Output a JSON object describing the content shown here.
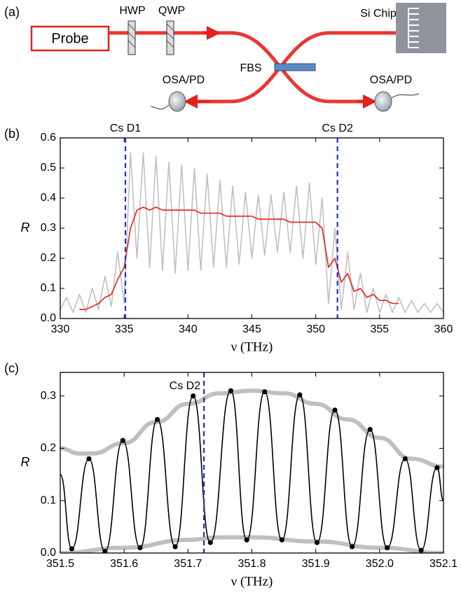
{
  "diagram": {
    "panel_label": "(a)",
    "probe": "Probe",
    "hwp": "HWP",
    "qwp": "QWP",
    "chip": "Si Chip",
    "fbs": "FBS",
    "osa_left": "OSA/PD",
    "osa_right": "OSA/PD"
  },
  "chart_data": [
    {
      "type": "line",
      "panel_label": "(b)",
      "x_label": "ν (THz)",
      "y_label": "R",
      "xlim": [
        330,
        360
      ],
      "xticks": [
        330,
        335,
        340,
        345,
        350,
        355,
        360
      ],
      "ylim": [
        0,
        0.6
      ],
      "yticks": [
        {
          "value": 0,
          "label": "0.0"
        },
        0.1,
        0.2,
        0.3,
        0.4,
        0.5,
        0.6
      ],
      "annotations": [
        {
          "text": "Cs D1",
          "x": 335.1,
          "color": "#1f2fd6"
        },
        {
          "text": "Cs D2",
          "x": 351.7,
          "color": "#1f2fd6"
        }
      ],
      "series": [
        {
          "color": "#c0c0c0",
          "mode": "line",
          "x": [
            330,
            330.5,
            331,
            331.5,
            332,
            332.5,
            333,
            333.5,
            334,
            334.5,
            335,
            335.5,
            336,
            336.5,
            337,
            337.5,
            338,
            338.5,
            339,
            339.5,
            340,
            340.5,
            341,
            341.5,
            342,
            342.5,
            343,
            343.5,
            344,
            344.5,
            345,
            345.5,
            346,
            346.5,
            347,
            347.5,
            348,
            348.5,
            349,
            349.5,
            350,
            350.5,
            351,
            351.5,
            352,
            352.5,
            353,
            353.5,
            354,
            354.5,
            355,
            355.5,
            356,
            356.5,
            357,
            357.5,
            358,
            358.5,
            359,
            359.5,
            360
          ],
          "values": [
            0.03,
            0.07,
            0.02,
            0.08,
            0.02,
            0.1,
            0.03,
            0.14,
            0.04,
            0.22,
            0.05,
            0.55,
            0.2,
            0.55,
            0.17,
            0.54,
            0.16,
            0.52,
            0.15,
            0.51,
            0.16,
            0.5,
            0.16,
            0.48,
            0.17,
            0.46,
            0.17,
            0.44,
            0.18,
            0.42,
            0.2,
            0.41,
            0.21,
            0.41,
            0.22,
            0.42,
            0.22,
            0.44,
            0.2,
            0.45,
            0.18,
            0.4,
            0.05,
            0.3,
            0.03,
            0.22,
            0.03,
            0.15,
            0.02,
            0.1,
            0.02,
            0.08,
            0.02,
            0.07,
            0.02,
            0.06,
            0.02,
            0.05,
            0.02,
            0.05,
            0.02
          ]
        },
        {
          "color": "#e8201c",
          "mode": "line",
          "x": [
            331.5,
            332,
            332.5,
            333,
            333.5,
            334,
            334.5,
            335,
            335.5,
            336,
            336.5,
            337,
            337.5,
            338,
            338.5,
            339,
            339.5,
            340,
            340.5,
            341,
            341.5,
            342,
            342.5,
            343,
            343.5,
            344,
            344.5,
            345,
            345.5,
            346,
            346.5,
            347,
            347.5,
            348,
            348.5,
            349,
            349.5,
            350,
            350.5,
            351,
            351.5,
            352,
            352.5,
            353,
            353.5,
            354,
            354.5,
            355,
            355.5,
            356,
            356.5
          ],
          "values": [
            0.03,
            0.03,
            0.04,
            0.05,
            0.07,
            0.08,
            0.13,
            0.17,
            0.3,
            0.36,
            0.37,
            0.36,
            0.37,
            0.36,
            0.36,
            0.36,
            0.36,
            0.36,
            0.36,
            0.35,
            0.35,
            0.35,
            0.35,
            0.34,
            0.34,
            0.34,
            0.34,
            0.34,
            0.33,
            0.33,
            0.33,
            0.33,
            0.33,
            0.32,
            0.32,
            0.32,
            0.32,
            0.32,
            0.3,
            0.17,
            0.2,
            0.12,
            0.15,
            0.09,
            0.1,
            0.07,
            0.08,
            0.06,
            0.06,
            0.05,
            0.05
          ]
        }
      ]
    },
    {
      "type": "line",
      "panel_label": "(c)",
      "x_label": "ν (THz)",
      "y_label": "R",
      "xlim": [
        351.5,
        352.1
      ],
      "xticks": [
        351.5,
        351.6,
        351.7,
        351.8,
        351.9,
        {
          "value": 352,
          "label": "352.0"
        },
        352.1
      ],
      "ylim": [
        0,
        0.345
      ],
      "yticks": [
        {
          "value": 0,
          "label": "0.0"
        },
        0.1,
        0.2,
        0.3
      ],
      "annotations": [
        {
          "text": "Cs D2",
          "x": 351.725,
          "color": "#1f2fd6"
        }
      ],
      "series": [
        {
          "color": "#8a8a8a",
          "mode": "band",
          "smooth": true,
          "x": [
            351.5,
            351.53,
            351.55,
            351.6,
            351.65,
            351.7,
            351.75,
            351.8,
            351.85,
            351.9,
            351.95,
            352,
            352.05,
            352.1
          ],
          "values": [
            0.2,
            0.19,
            0.19,
            0.21,
            0.25,
            0.285,
            0.305,
            0.31,
            0.305,
            0.285,
            0.255,
            0.22,
            0.18,
            0.165
          ]
        },
        {
          "color": "#8a8a8a",
          "mode": "band",
          "smooth": true,
          "x": [
            351.5,
            351.6,
            351.7,
            351.75,
            351.8,
            351.9,
            352,
            352.1
          ],
          "values": [
            0,
            0.01,
            0.025,
            0.03,
            0.03,
            0.022,
            0.01,
            0
          ]
        },
        {
          "color": "#000000",
          "mode": "line",
          "smooth": true,
          "x": [
            351.5,
            351.518,
            351.545,
            351.57,
            351.598,
            351.625,
            351.652,
            351.68,
            351.708,
            351.735,
            351.767,
            351.792,
            351.82,
            351.847,
            351.875,
            351.902,
            351.93,
            351.957,
            351.985,
            352.012,
            352.04,
            352.065,
            352.09,
            352.1
          ],
          "values": [
            0.15,
            0.008,
            0.18,
            0.003,
            0.215,
            0.01,
            0.255,
            0.012,
            0.3,
            0.02,
            0.31,
            0.025,
            0.308,
            0.025,
            0.302,
            0.02,
            0.273,
            0.012,
            0.236,
            0.01,
            0.18,
            0.005,
            0.163,
            0.1
          ]
        },
        {
          "color": "#000000",
          "mode": "markers",
          "x": [
            351.518,
            351.545,
            351.57,
            351.598,
            351.625,
            351.652,
            351.68,
            351.708,
            351.735,
            351.767,
            351.792,
            351.82,
            351.847,
            351.875,
            351.902,
            351.93,
            351.957,
            351.985,
            352.012,
            352.04,
            352.065,
            352.09
          ],
          "values": [
            0.008,
            0.18,
            0.003,
            0.215,
            0.01,
            0.255,
            0.012,
            0.3,
            0.02,
            0.31,
            0.025,
            0.308,
            0.025,
            0.302,
            0.02,
            0.273,
            0.012,
            0.236,
            0.01,
            0.18,
            0.005,
            0.163
          ]
        }
      ]
    }
  ]
}
